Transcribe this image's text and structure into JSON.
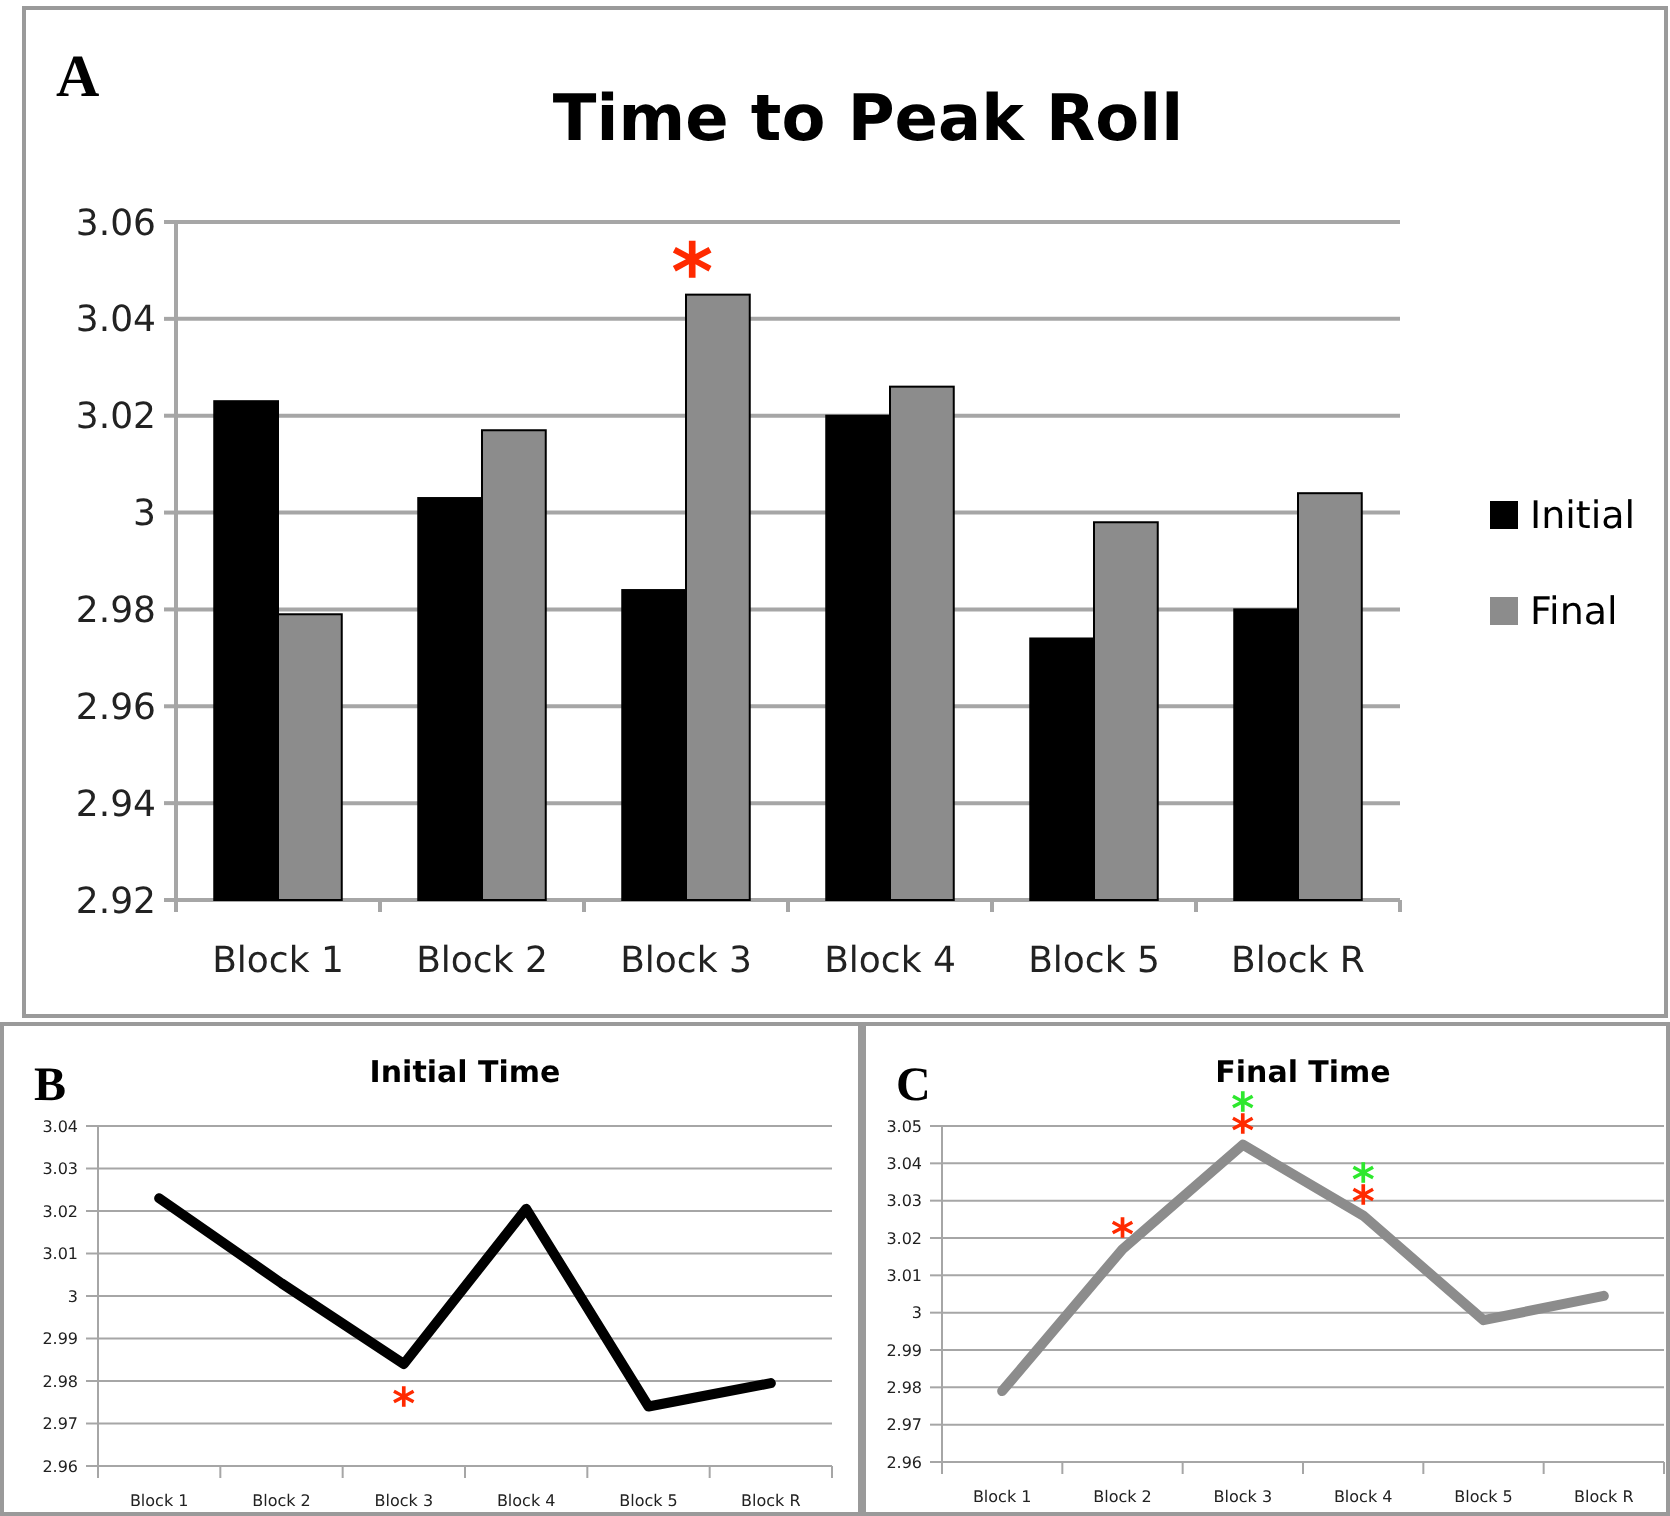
{
  "chart_data": [
    {
      "type": "bar",
      "title": "Time to Peak Roll",
      "categories": [
        "Block 1",
        "Block 2",
        "Block 3",
        "Block 4",
        "Block 5",
        "Block R"
      ],
      "series": [
        {
          "name": "Initial",
          "color": "#000000",
          "values": [
            3.023,
            3.003,
            2.984,
            3.02,
            2.974,
            2.98
          ]
        },
        {
          "name": "Final",
          "color": "#8c8c8c",
          "values": [
            2.979,
            3.017,
            3.045,
            3.026,
            2.998,
            3.004
          ]
        }
      ],
      "ylim": [
        2.92,
        3.06
      ],
      "yticks": [
        2.92,
        2.94,
        2.96,
        2.98,
        3,
        3.02,
        3.04,
        3.06
      ],
      "grid": "y",
      "legend": "right",
      "annotations": [
        "A",
        {
          "text": "*",
          "x": "Block 3",
          "y": 3.045
        }
      ]
    },
    {
      "type": "line",
      "title": "Initial Time",
      "categories": [
        "Block 1",
        "Block 2",
        "Block 3",
        "Block 4",
        "Block 5",
        "Block R"
      ],
      "series": [
        {
          "color": "#000000",
          "values": [
            3.023,
            3.003,
            2.984,
            3.0205,
            2.974,
            2.9795
          ]
        }
      ],
      "ylim": [
        2.96,
        3.04
      ],
      "yticks": [
        2.96,
        2.97,
        2.98,
        2.99,
        3,
        3.01,
        3.02,
        3.03,
        3.04
      ],
      "grid": "y",
      "marker": "none",
      "annotations": [
        "B",
        {
          "text": "*",
          "x": "Block 3",
          "y": 2.984
        }
      ]
    },
    {
      "type": "line",
      "title": "Final Time",
      "categories": [
        "Block 1",
        "Block 2",
        "Block 3",
        "Block 4",
        "Block 5",
        "Block R"
      ],
      "series": [
        {
          "color": "#8c8c8c",
          "values": [
            2.979,
            3.017,
            3.045,
            3.026,
            2.998,
            3.0045
          ]
        }
      ],
      "ylim": [
        2.96,
        3.05
      ],
      "yticks": [
        2.96,
        2.97,
        2.98,
        2.99,
        3,
        3.01,
        3.02,
        3.03,
        3.04,
        3.05
      ],
      "grid": "y",
      "marker": "none",
      "annotations": [
        "C",
        {
          "text": "*",
          "x": "Block 2",
          "y": 3.017
        },
        {
          "text": "*",
          "x": "Block 3",
          "y": 3.045
        },
        {
          "text": "*",
          "x": "Block 3",
          "y": 3.045
        },
        {
          "text": "*",
          "x": "Block 4",
          "y": 3.026
        },
        {
          "text": "*",
          "x": "Block 4",
          "y": 3.026
        }
      ]
    }
  ]
}
